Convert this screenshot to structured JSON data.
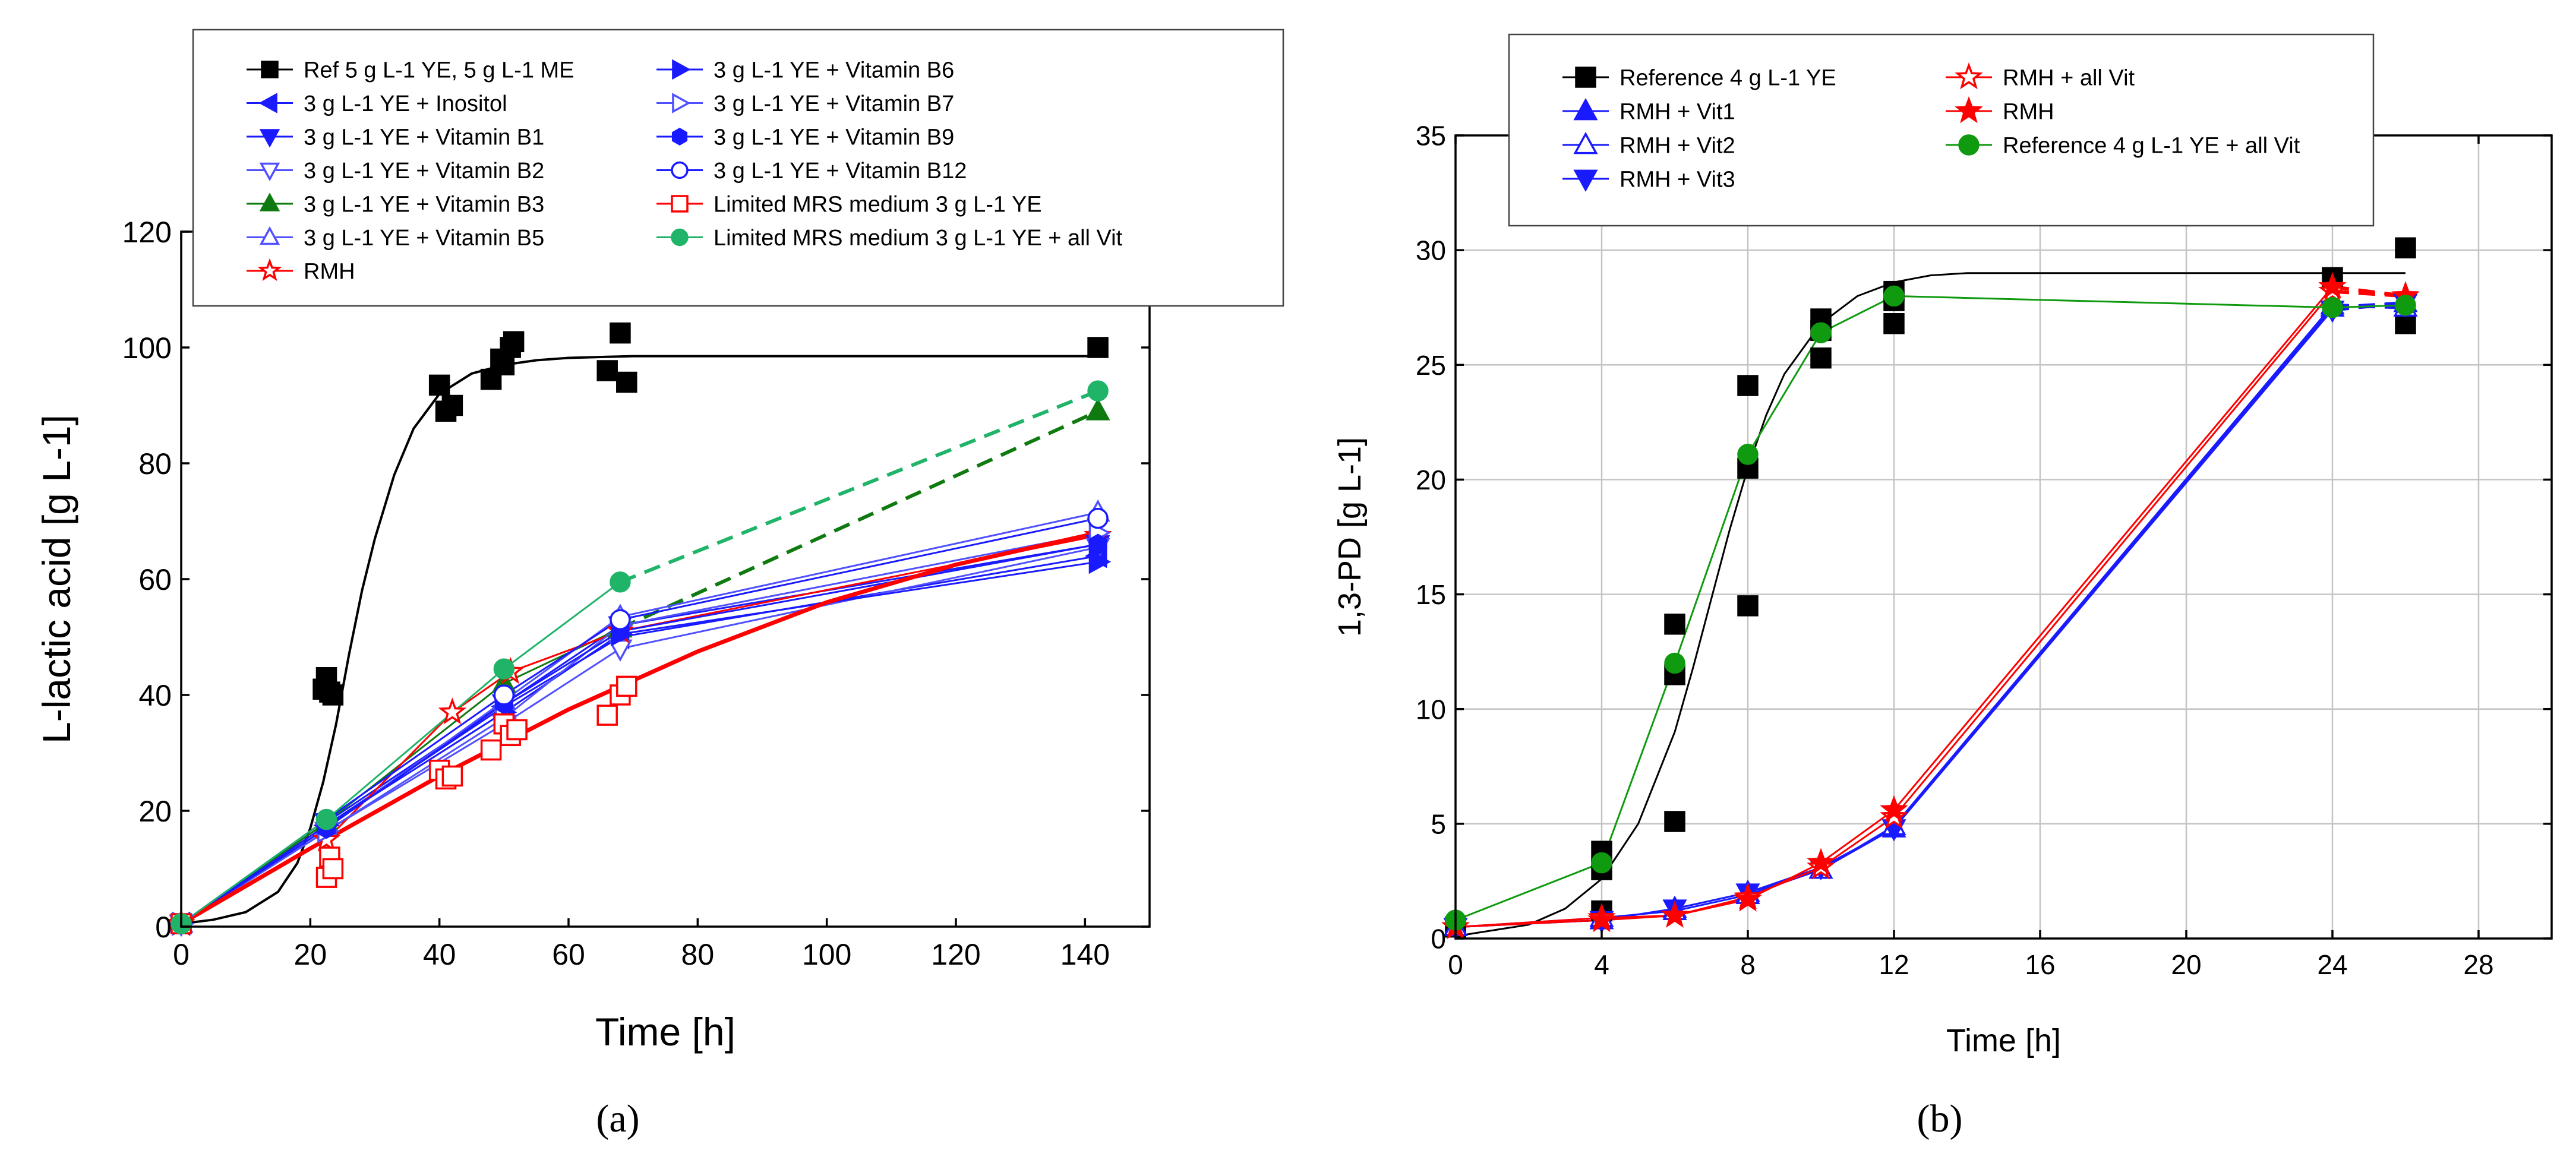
{
  "panels": [
    {
      "caption": "(a)",
      "caption_letter": "a",
      "chart_data": {
        "type": "scatter",
        "xlabel": "Time [h]",
        "ylabel": "L-lactic acid [g L-1]",
        "xlim": [
          0,
          150
        ],
        "ylim": [
          0,
          120
        ],
        "xticks": [
          0,
          20,
          40,
          60,
          80,
          100,
          120,
          140
        ],
        "yticks": [
          0,
          20,
          40,
          60,
          80,
          100,
          120
        ],
        "grid": false,
        "legend_position": "top",
        "series": [
          {
            "name": "Ref 5 g L-1 YE, 5 g L-1 ME",
            "color": "#000000",
            "marker": "square-filled",
            "x": [
              0,
              22,
              22.5,
              23,
              23.5,
              40,
              41,
              42,
              48,
              49.5,
              50,
              51,
              51.5,
              66,
              68,
              69,
              142
            ],
            "y": [
              0.5,
              41,
              43,
              40.5,
              40,
              93.5,
              89,
              90,
              94.5,
              98,
              97,
              100,
              101,
              96,
              102.5,
              94,
              100
            ],
            "fit": {
              "x": [
                0,
                5,
                10,
                15,
                18,
                20,
                22,
                24,
                26,
                28,
                30,
                33,
                36,
                40,
                45,
                50,
                55,
                60,
                70,
                80,
                100,
                120,
                142
              ],
              "y": [
                0.5,
                1.2,
                2.5,
                6,
                11,
                17,
                25,
                35,
                47,
                58,
                67,
                78,
                86,
                92,
                95.5,
                97,
                97.8,
                98.2,
                98.5,
                98.5,
                98.5,
                98.5,
                98.5
              ],
              "color": "#000000",
              "width": 4,
              "dash": ""
            }
          },
          {
            "name": "3 g L-1 YE + Inositol",
            "color": "#1a1aff",
            "marker": "tri-left",
            "x": [
              0,
              22.5,
              50,
              68,
              142
            ],
            "y": [
              0.5,
              17.5,
              38,
              50,
              64
            ],
            "line": "solid",
            "lw": 3
          },
          {
            "name": "3 g L-1 YE + Vitamin B1",
            "color": "#1a1aff",
            "marker": "tri-down-filled",
            "x": [
              0,
              22.5,
              50,
              68,
              142
            ],
            "y": [
              0.5,
              18,
              38.5,
              52,
              66
            ],
            "line": "solid",
            "lw": 3
          },
          {
            "name": "3 g L-1 YE + Vitamin B2",
            "color": "#5050ff",
            "marker": "tri-down-open",
            "x": [
              0,
              22.5,
              50,
              68,
              142
            ],
            "y": [
              0.5,
              16.5,
              35,
              48,
              65.5
            ],
            "line": "solid",
            "lw": 3
          },
          {
            "name": "3 g L-1 YE + Vitamin B3",
            "color": "#0f7a0f",
            "marker": "tri-up-filled",
            "x": [
              0,
              22.5,
              50,
              68,
              142
            ],
            "y": [
              0.5,
              18,
              42,
              51.5,
              89
            ],
            "line": "solid",
            "lw": 3,
            "dash_last": true
          },
          {
            "name": "3 g L-1 YE + Vitamin B5",
            "color": "#5050ff",
            "marker": "tri-up-open",
            "x": [
              0,
              22.5,
              50,
              68,
              142
            ],
            "y": [
              0.5,
              17,
              39,
              53.5,
              71.5
            ],
            "line": "solid",
            "lw": 3
          },
          {
            "name": "RMH",
            "color": "#ff0000",
            "marker": "star-open",
            "x": [
              0,
              22.5,
              42,
              51,
              68,
              142
            ],
            "y": [
              0.5,
              15,
              37,
              44,
              51,
              67.5
            ],
            "line": "solid",
            "lw": 3
          },
          {
            "name": "3 g L-1 YE + Vitamin B6",
            "color": "#1a1aff",
            "marker": "tri-right-filled",
            "x": [
              0,
              22.5,
              50,
              68,
              142
            ],
            "y": [
              0.5,
              17.5,
              37,
              50.5,
              63
            ],
            "line": "solid",
            "lw": 3
          },
          {
            "name": "3 g L-1 YE + Vitamin B7",
            "color": "#5050ff",
            "marker": "tri-right-open",
            "x": [
              0,
              22.5,
              50,
              68,
              142
            ],
            "y": [
              0.5,
              16.5,
              36,
              52,
              68
            ],
            "line": "solid",
            "lw": 3
          },
          {
            "name": "3 g L-1 YE + Vitamin B9",
            "color": "#1a1aff",
            "marker": "hexagon-filled",
            "x": [
              0,
              22.5,
              50,
              68,
              142
            ],
            "y": [
              0.5,
              17,
              38.5,
              51,
              66
            ],
            "line": "solid",
            "lw": 3
          },
          {
            "name": "3 g L-1 YE + Vitamin B12",
            "color": "#1a1aff",
            "marker": "circle-open",
            "x": [
              0,
              22.5,
              50,
              68,
              142
            ],
            "y": [
              0.5,
              18.5,
              40,
              53,
              70.5
            ],
            "line": "solid",
            "lw": 3
          },
          {
            "name": "Limited MRS medium 3 g L-1 YE",
            "color": "#ff0000",
            "marker": "square-open",
            "x": [
              0,
              22.5,
              23,
              23.5,
              40,
              41,
              42,
              48,
              50,
              51,
              52,
              66,
              68,
              69
            ],
            "y": [
              0.5,
              8.5,
              12,
              10,
              27,
              25.5,
              26,
              30.5,
              35,
              33,
              34,
              36.5,
              40,
              41.5
            ],
            "fit": {
              "x": [
                0,
                20,
                40,
                60,
                80,
                100,
                120,
                142
              ],
              "y": [
                0.5,
                13.5,
                26,
                37.5,
                47.5,
                56,
                62.5,
                68
              ],
              "color": "#ff0000",
              "width": 7,
              "dash": ""
            }
          },
          {
            "name": "Limited MRS medium 3 g L-1 YE + all Vit",
            "color": "#1fb468",
            "marker": "circle-filled",
            "x": [
              0,
              22.5,
              50,
              68,
              142
            ],
            "y": [
              0.5,
              18.5,
              44.5,
              59.5,
              92.5
            ],
            "line": "solid",
            "lw": 3,
            "dash_last": true
          }
        ]
      }
    },
    {
      "caption": "(b)",
      "caption_letter": "b",
      "chart_data": {
        "type": "scatter",
        "xlabel": "Time [h]",
        "ylabel": "1,3-PD [g L-1]",
        "xlim": [
          0,
          30
        ],
        "ylim": [
          0,
          35
        ],
        "xticks": [
          0,
          4,
          8,
          12,
          16,
          20,
          24,
          28
        ],
        "yticks": [
          0,
          5,
          10,
          15,
          20,
          25,
          30,
          35
        ],
        "grid": true,
        "legend_position": "top-left",
        "series": [
          {
            "name": "Reference 4 g L-1 YE",
            "color": "#000000",
            "marker": "square-filled",
            "x": [
              0,
              4,
              4,
              4,
              6,
              6,
              6,
              8,
              8,
              8,
              10,
              10,
              10,
              12,
              12,
              12,
              24,
              26,
              26
            ],
            "y": [
              0.5,
              1.2,
              3.0,
              3.8,
              5.1,
              11.5,
              13.7,
              14.5,
              20.5,
              24.1,
              25.3,
              26.5,
              27.0,
              26.8,
              27.8,
              28.2,
              28.8,
              26.8,
              30.1
            ],
            "fit": {
              "x": [
                0,
                2,
                3,
                4,
                5,
                6,
                6.5,
                7,
                7.5,
                8,
                8.5,
                9,
                10,
                11,
                12,
                13,
                14,
                16,
                20,
                24,
                26
              ],
              "y": [
                0.1,
                0.6,
                1.3,
                2.6,
                5.0,
                9.0,
                11.8,
                14.8,
                17.8,
                20.5,
                22.8,
                24.6,
                26.8,
                28.0,
                28.6,
                28.9,
                29.0,
                29.0,
                29.0,
                29.0,
                29.0
              ],
              "color": "#000000",
              "width": 3,
              "dash": ""
            }
          },
          {
            "name": "RMH + Vit1",
            "color": "#1a1aff",
            "marker": "tri-up-filled",
            "x": [
              0,
              4,
              6,
              8,
              10,
              12,
              24,
              26
            ],
            "y": [
              0.5,
              0.8,
              1.3,
              2.0,
              3.0,
              4.8,
              27.5,
              27.7
            ],
            "line": "solid",
            "lw": 3,
            "dash_last": true
          },
          {
            "name": "RMH + Vit2",
            "color": "#1a1aff",
            "marker": "tri-up-open",
            "x": [
              0,
              4,
              6,
              8,
              10,
              12,
              24,
              26
            ],
            "y": [
              0.5,
              0.9,
              1.2,
              1.9,
              3.0,
              4.9,
              27.6,
              27.5
            ],
            "line": "solid",
            "lw": 3,
            "dash_last": true
          },
          {
            "name": "RMH + Vit3",
            "color": "#1a1aff",
            "marker": "tri-down-filled",
            "x": [
              0,
              4,
              6,
              8,
              10,
              12,
              24,
              26
            ],
            "y": [
              0.5,
              0.8,
              1.3,
              2.0,
              3.1,
              4.8,
              27.4,
              27.7
            ],
            "line": "solid",
            "lw": 3,
            "dash_last": true
          },
          {
            "name": "RMH + all Vit",
            "color": "#ff0000",
            "marker": "star-open",
            "x": [
              0,
              4,
              6,
              8,
              10,
              12,
              24,
              26
            ],
            "y": [
              0.5,
              0.9,
              1.0,
              1.8,
              3.1,
              5.3,
              28.2,
              28.0
            ],
            "line": "solid",
            "lw": 3,
            "dash_last": true
          },
          {
            "name": "RMH",
            "color": "#ff0000",
            "marker": "star-filled",
            "x": [
              0,
              4,
              6,
              8,
              10,
              12,
              24,
              26
            ],
            "y": [
              0.5,
              0.8,
              1.0,
              1.7,
              3.3,
              5.6,
              28.4,
              28.0
            ],
            "line": "solid",
            "lw": 3,
            "dash_last": true
          },
          {
            "name": "Reference 4 g L-1 YE + all Vit",
            "color": "#0f9a0f",
            "marker": "circle-filled",
            "x": [
              0,
              4,
              6,
              8,
              10,
              12,
              24,
              26
            ],
            "y": [
              0.8,
              3.3,
              12.0,
              21.1,
              26.4,
              28.0,
              27.5,
              27.6
            ],
            "line": "solid",
            "lw": 3
          }
        ]
      }
    }
  ]
}
